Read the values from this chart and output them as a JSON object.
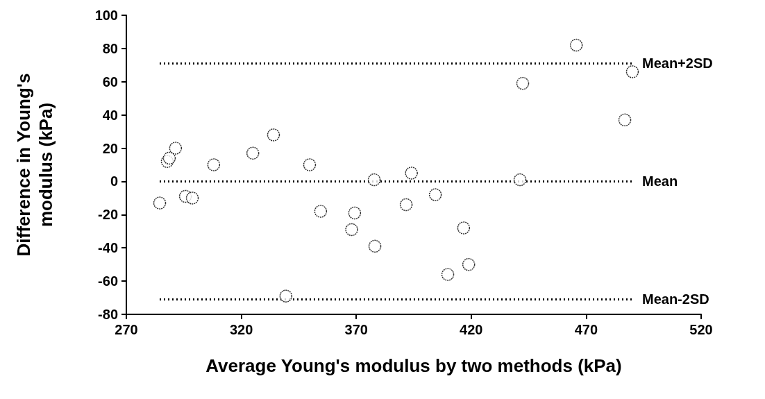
{
  "chart_data": {
    "type": "scatter",
    "xlabel": "Average Young's modulus by two methods (kPa)",
    "ylabel": "Difference in Young's\nmodulus (kPa)",
    "x": [
      284.5,
      287.8,
      288.7,
      291.4,
      295.7,
      298.7,
      308,
      325,
      334,
      339.4,
      349.7,
      354.5,
      368,
      369.3,
      377.8,
      378.1,
      391.7,
      394,
      404.4,
      409.8,
      416.7,
      418.9,
      441.2,
      442.4,
      465.7,
      486.8,
      490.1
    ],
    "values": [
      -13,
      12,
      14,
      20,
      -9,
      -10,
      10,
      17,
      28,
      -69,
      10,
      -18,
      -29,
      -19,
      1,
      -39,
      -14,
      5,
      -8,
      -56,
      -28,
      -50,
      1,
      59,
      82,
      37,
      66
    ],
    "color": "#000000",
    "marker": "circle",
    "xlim": [
      270,
      520
    ],
    "xticks": [
      270,
      320,
      370,
      420,
      470,
      520
    ],
    "ylim": [
      -80,
      100
    ],
    "yticks": [
      -80,
      -60,
      -40,
      -20,
      0,
      20,
      40,
      60,
      80,
      100
    ],
    "ref_lines": [
      {
        "axis": "y",
        "value": 71,
        "label": "Mean+2SD",
        "color": "#000000",
        "line_style": "dotted"
      },
      {
        "axis": "y",
        "value": 0,
        "label": "Mean",
        "color": "#000000",
        "line_style": "dotted"
      },
      {
        "axis": "y",
        "value": -71,
        "label": "Mean-2SD",
        "color": "#000000",
        "line_style": "dotted"
      }
    ]
  }
}
